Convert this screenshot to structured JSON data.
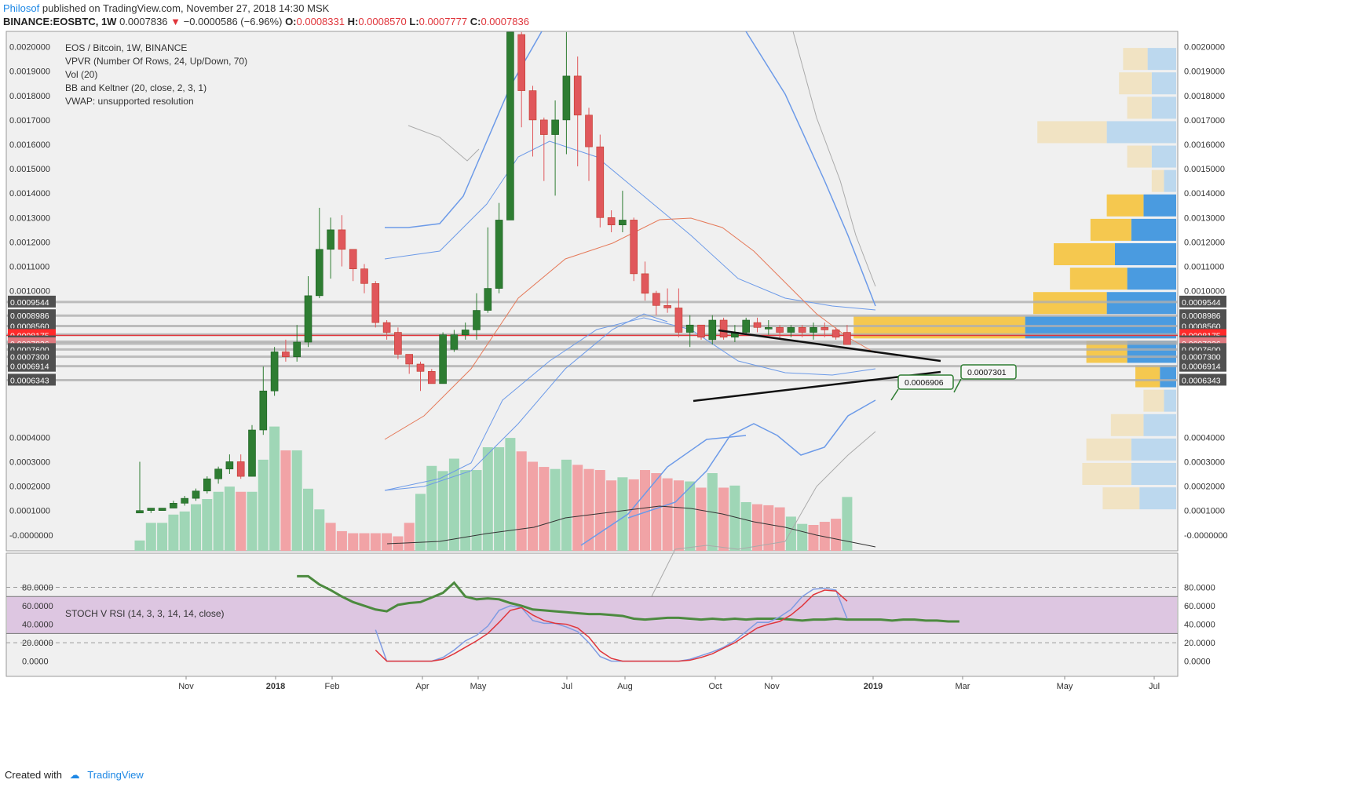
{
  "header": {
    "author": "Philosof",
    "published": "published on TradingView.com, November 27, 2018 14:30 MSK",
    "symbol": "BINANCE:EOSBTC, 1W",
    "last": "0.0007836",
    "change": "−0.0000586 (−6.96%)",
    "o_label": "O:",
    "o": "0.0008331",
    "h_label": "H:",
    "h": "0.0008570",
    "l_label": "L:",
    "l": "0.0007777",
    "c_label": "C:",
    "c": "0.0007836"
  },
  "legend": [
    "EOS / Bitcoin, 1W, BINANCE",
    "VPVR (Number Of Rows, 24, Up/Down, 70)",
    "Vol (20)",
    "BB and Keltner (20, close, 2, 3, 1)",
    "VWAP: unsupported resolution"
  ],
  "stoch_label": "STOCH V RSI (14, 3, 3, 14, 14, close)",
  "footer": {
    "created": "Created with",
    "brand": "TradingView"
  },
  "colors": {
    "up": "#2e7d32",
    "down": "#e0575b",
    "vol_up": "#9fd6b6",
    "vol_down": "#f1a3a6",
    "bb": "#6c9ae8",
    "keltner": "#aaaaaa",
    "ma": "#e57a5a",
    "stoch_band": "#d9bede",
    "k": "#7f9be2",
    "d": "#e0353b",
    "rsi": "#4c8a3f",
    "vpvr_up": "#f5c84f",
    "vpvr_down": "#4a9be0"
  },
  "chart_data": {
    "type": "candlestick",
    "title": "EOS / Bitcoin, 1W, BINANCE",
    "x_labels": [
      "Nov",
      "2018",
      "Feb",
      "Apr",
      "May",
      "Jul",
      "Aug",
      "Oct",
      "Nov",
      "2019",
      "Mar",
      "May",
      "Jul"
    ],
    "price_ticks": [
      "0.0020000",
      "0.0019000",
      "0.0018000",
      "0.0017000",
      "0.0016000",
      "0.0015000",
      "0.0014000",
      "0.0013000",
      "0.0012000",
      "0.0011000",
      "0.0010000",
      "0.0004000",
      "0.0003000",
      "0.0002000",
      "0.0001000",
      "-0.0000000"
    ],
    "price_range": [
      -2e-05,
      0.00205
    ],
    "level_labels": [
      {
        "v": "0.0009544",
        "kind": "grey"
      },
      {
        "v": "0.0008986",
        "kind": "grey"
      },
      {
        "v": "0.0008560",
        "kind": "grey"
      },
      {
        "v": "0.0008213",
        "kind": "grey"
      },
      {
        "v": "0.0008175",
        "kind": "red"
      },
      {
        "v": "0.0007915",
        "kind": "grey"
      },
      {
        "v": "0.0007836",
        "kind": "pink"
      },
      {
        "v": "0.0007600",
        "kind": "grey"
      },
      {
        "v": "0.0007300",
        "kind": "grey"
      },
      {
        "v": "0.0006914",
        "kind": "grey"
      },
      {
        "v": "0.0006343",
        "kind": "grey"
      }
    ],
    "annotations": [
      "0.0007301",
      "0.0006906"
    ],
    "candles": [
      [
        9e-05,
        0.0001,
        0.0003,
        9e-05
      ],
      [
        0.0001,
        0.00011,
        0.00011,
        9e-05
      ],
      [
        0.0001,
        0.00011,
        0.00011,
        0.0001
      ],
      [
        0.00011,
        0.00013,
        0.00014,
        0.00011
      ],
      [
        0.00013,
        0.00015,
        0.00016,
        0.00012
      ],
      [
        0.00015,
        0.00018,
        0.00019,
        0.00014
      ],
      [
        0.00018,
        0.00023,
        0.00024,
        0.00017
      ],
      [
        0.00023,
        0.00027,
        0.00028,
        0.00021
      ],
      [
        0.00027,
        0.0003,
        0.00033,
        0.00025
      ],
      [
        0.0003,
        0.00024,
        0.00033,
        0.00023
      ],
      [
        0.00024,
        0.00043,
        0.00045,
        0.00024
      ],
      [
        0.00043,
        0.00059,
        0.00069,
        0.00041
      ],
      [
        0.00059,
        0.00075,
        0.00077,
        0.00057
      ],
      [
        0.00075,
        0.00073,
        0.0008,
        0.00071
      ],
      [
        0.00073,
        0.00079,
        0.00086,
        0.00071
      ],
      [
        0.00079,
        0.00098,
        0.00106,
        0.00077
      ],
      [
        0.00098,
        0.00117,
        0.00134,
        0.00097
      ],
      [
        0.00117,
        0.00125,
        0.0013,
        0.00105
      ],
      [
        0.00125,
        0.00117,
        0.00131,
        0.0011
      ],
      [
        0.00117,
        0.00109,
        0.00116,
        0.00104
      ],
      [
        0.00109,
        0.00103,
        0.00111,
        0.00099
      ],
      [
        0.00103,
        0.00087,
        0.00104,
        0.00085
      ],
      [
        0.00087,
        0.00083,
        0.00088,
        0.0008
      ],
      [
        0.00083,
        0.00074,
        0.00085,
        0.00072
      ],
      [
        0.00074,
        0.0007,
        0.00074,
        0.00066
      ],
      [
        0.0007,
        0.00067,
        0.00071,
        0.00059
      ],
      [
        0.00067,
        0.00062,
        0.00068,
        0.00062
      ],
      [
        0.00062,
        0.00082,
        0.00083,
        0.00062
      ],
      [
        0.00076,
        0.00082,
        0.00084,
        0.00075
      ],
      [
        0.00082,
        0.00084,
        0.00087,
        0.0008
      ],
      [
        0.00084,
        0.00092,
        0.00099,
        0.0008
      ],
      [
        0.00092,
        0.00101,
        0.00126,
        0.00091
      ],
      [
        0.00101,
        0.00129,
        0.00136,
        0.00099
      ],
      [
        0.00129,
        0.0021,
        0.0021,
        0.00129
      ],
      [
        0.00205,
        0.00182,
        0.0021,
        0.00167
      ],
      [
        0.00182,
        0.0017,
        0.00184,
        0.00155
      ],
      [
        0.0017,
        0.00164,
        0.00171,
        0.00145
      ],
      [
        0.00164,
        0.0017,
        0.00178,
        0.00139
      ],
      [
        0.0017,
        0.00188,
        0.0021,
        0.00156
      ],
      [
        0.00188,
        0.00172,
        0.00196,
        0.00151
      ],
      [
        0.00172,
        0.00159,
        0.00175,
        0.00145
      ],
      [
        0.00159,
        0.0013,
        0.00164,
        0.00126
      ],
      [
        0.0013,
        0.00127,
        0.00133,
        0.00124
      ],
      [
        0.00127,
        0.00129,
        0.00141,
        0.00124
      ],
      [
        0.00129,
        0.00107,
        0.0013,
        0.00104
      ],
      [
        0.00107,
        0.00099,
        0.00112,
        0.00096
      ],
      [
        0.00099,
        0.00094,
        0.001,
        0.0009
      ],
      [
        0.00094,
        0.00093,
        0.00101,
        0.00091
      ],
      [
        0.00093,
        0.00083,
        0.00101,
        0.00081
      ],
      [
        0.00083,
        0.00086,
        0.0009,
        0.00077
      ],
      [
        0.00086,
        0.00081,
        0.00086,
        0.0008
      ],
      [
        0.0008,
        0.00088,
        0.0009,
        0.00078
      ],
      [
        0.00088,
        0.00081,
        0.00089,
        0.0008
      ],
      [
        0.00081,
        0.00083,
        0.00086,
        0.00079
      ],
      [
        0.00083,
        0.00088,
        0.00089,
        0.00082
      ],
      [
        0.00087,
        0.00085,
        0.00089,
        0.00083
      ],
      [
        0.00085,
        0.00085,
        0.00088,
        0.00082
      ],
      [
        0.00085,
        0.00083,
        0.00086,
        0.0008
      ],
      [
        0.00083,
        0.00085,
        0.00086,
        0.00081
      ],
      [
        0.00085,
        0.00083,
        0.00086,
        0.00081
      ],
      [
        0.00083,
        0.00085,
        0.00087,
        0.0008
      ],
      [
        0.00085,
        0.00084,
        0.00087,
        0.00081
      ],
      [
        0.00084,
        0.00081,
        0.00085,
        0.0008
      ],
      [
        0.00083,
        0.00078,
        0.00086,
        0.00078
      ]
    ],
    "volume_ticks": [],
    "volume": [
      10,
      27,
      27,
      35,
      38,
      45,
      50,
      57,
      62,
      57,
      57,
      88,
      120,
      97,
      97,
      60,
      40,
      27,
      19,
      17,
      17,
      17,
      17,
      14,
      27,
      55,
      82,
      77,
      89,
      78,
      78,
      100,
      100,
      109,
      96,
      86,
      81,
      79,
      88,
      83,
      79,
      78,
      68,
      71,
      69,
      78,
      75,
      70,
      68,
      67,
      61,
      75,
      61,
      63,
      47,
      45,
      44,
      42,
      33,
      26,
      25,
      28,
      31,
      52
    ],
    "volume_up": [
      true,
      true,
      true,
      true,
      true,
      true,
      true,
      true,
      true,
      false,
      true,
      true,
      true,
      false,
      true,
      true,
      true,
      false,
      false,
      false,
      false,
      false,
      false,
      false,
      false,
      true,
      true,
      true,
      true,
      true,
      true,
      true,
      true,
      true,
      false,
      false,
      false,
      true,
      true,
      false,
      false,
      false,
      false,
      true,
      false,
      false,
      false,
      false,
      false,
      true,
      false,
      true,
      false,
      true,
      true,
      false,
      false,
      false,
      true,
      true,
      false,
      false,
      false,
      true
    ],
    "stoch_ticks": [
      "80.0000",
      "60.0000",
      "40.0000",
      "20.0000",
      "0.0000"
    ],
    "stoch_range": [
      -8,
      100
    ],
    "rsi": [
      92,
      92,
      83,
      77,
      70,
      64,
      60,
      56,
      54,
      61,
      63,
      64,
      69,
      74,
      85,
      70,
      67,
      68,
      67,
      63,
      60,
      56,
      55,
      54,
      53,
      52,
      51,
      51,
      50,
      49,
      46,
      45,
      46,
      47,
      47,
      46,
      45,
      46,
      45,
      46,
      45,
      46,
      46,
      46,
      45,
      44,
      45,
      45,
      46,
      45,
      45,
      45,
      45,
      44,
      45,
      45,
      44,
      44,
      43,
      43
    ],
    "k": [
      34,
      0,
      0,
      0,
      0,
      0,
      4,
      12,
      22,
      28,
      38,
      55,
      60,
      58,
      44,
      41,
      41,
      37,
      32,
      20,
      5,
      0,
      0,
      0,
      0,
      0,
      0,
      0,
      2,
      6,
      10,
      15,
      22,
      32,
      42,
      42,
      48,
      56,
      70,
      78,
      79,
      77,
      46
    ],
    "d": [
      12,
      0,
      0,
      0,
      0,
      0,
      2,
      8,
      15,
      22,
      30,
      42,
      55,
      58,
      50,
      44,
      41,
      40,
      36,
      26,
      11,
      3,
      0,
      0,
      0,
      0,
      0,
      0,
      1,
      4,
      8,
      14,
      20,
      28,
      36,
      40,
      43,
      50,
      60,
      72,
      77,
      76,
      65
    ],
    "vpvr": [
      {
        "price": 0.00195,
        "up": 0.06,
        "down": 0.07
      },
      {
        "price": 0.00185,
        "up": 0.08,
        "down": 0.06
      },
      {
        "price": 0.00175,
        "up": 0.06,
        "down": 0.06
      },
      {
        "price": 0.00165,
        "up": 0.17,
        "down": 0.17
      },
      {
        "price": 0.00155,
        "up": 0.06,
        "down": 0.06
      },
      {
        "price": 0.00145,
        "up": 0.03,
        "down": 0.03
      },
      {
        "price": 0.00135,
        "up": 0.09,
        "down": 0.08
      },
      {
        "price": 0.00125,
        "up": 0.1,
        "down": 0.11
      },
      {
        "price": 0.00115,
        "up": 0.15,
        "down": 0.15
      },
      {
        "price": 0.00105,
        "up": 0.14,
        "down": 0.12
      },
      {
        "price": 0.00095,
        "up": 0.18,
        "down": 0.17
      },
      {
        "price": 0.00085,
        "up": 0.42,
        "down": 0.37
      },
      {
        "price": 0.00075,
        "up": 0.1,
        "down": 0.12
      },
      {
        "price": 0.00065,
        "up": 0.06,
        "down": 0.04
      },
      {
        "price": 0.00055,
        "up": 0.05,
        "down": 0.03
      },
      {
        "price": 0.00045,
        "up": 0.08,
        "down": 0.08
      },
      {
        "price": 0.00035,
        "up": 0.11,
        "down": 0.11
      },
      {
        "price": 0.00025,
        "up": 0.12,
        "down": 0.11
      },
      {
        "price": 0.00015,
        "up": 0.09,
        "down": 0.09
      }
    ]
  }
}
